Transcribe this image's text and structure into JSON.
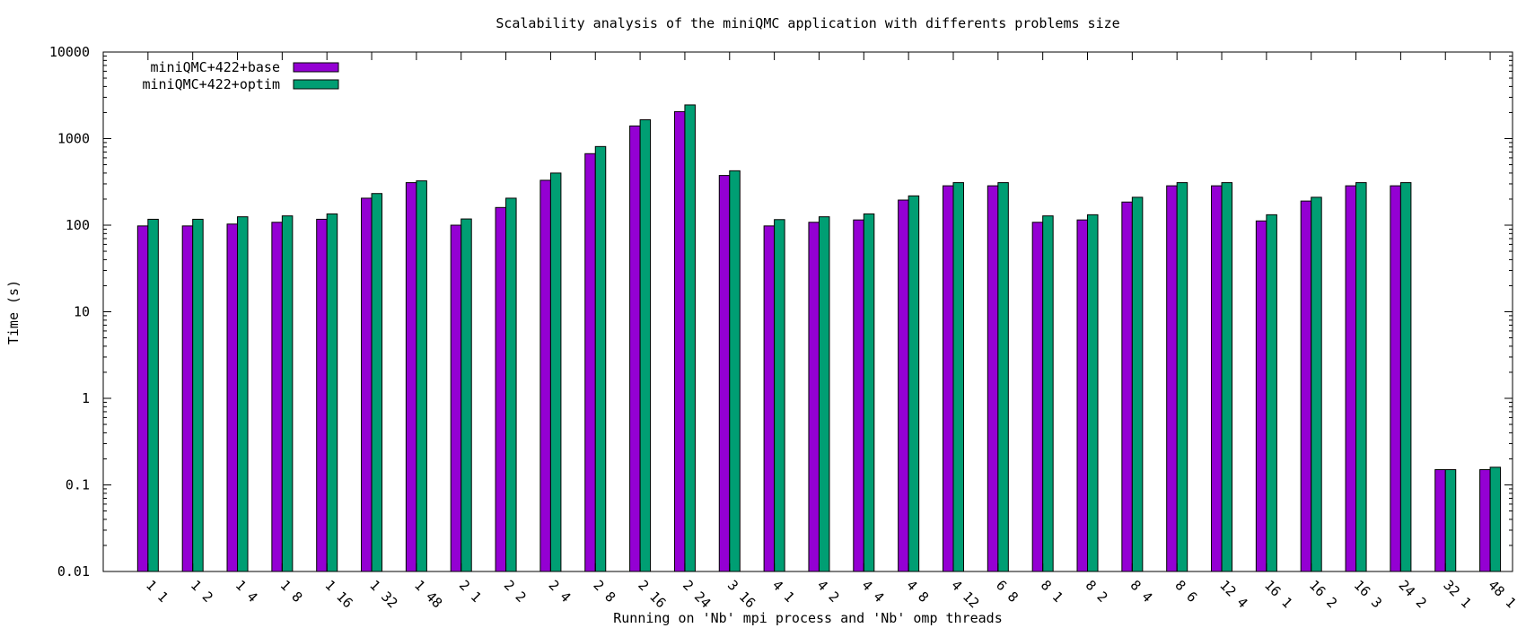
{
  "chart_data": {
    "type": "bar",
    "title": "Scalability analysis of the miniQMC application with differents problems size",
    "xlabel": "Running on 'Nb' mpi process and 'Nb' omp threads",
    "ylabel": "Time (s)",
    "yscale": "log",
    "ylim": [
      0.01,
      10000
    ],
    "yticks": [
      "0.01",
      "0.1",
      "1",
      "10",
      "100",
      "1000",
      "10000"
    ],
    "legend_position": "top-left",
    "categories": [
      "1 1",
      "1 2",
      "1 4",
      "1 8",
      "1 16",
      "1 32",
      "1 48",
      "2 1",
      "2 2",
      "2 4",
      "2 8",
      "2 16",
      "2 24",
      "3 16",
      "4 1",
      "4 2",
      "4 4",
      "4 8",
      "4 12",
      "6 8",
      "8 1",
      "8 2",
      "8 4",
      "8 6",
      "12 4",
      "16 1",
      "16 2",
      "16 3",
      "24 2",
      "32 1",
      "48 1"
    ],
    "series": [
      {
        "name": "miniQMC+422+base",
        "color": "#9400d3",
        "values": [
          98,
          98,
          103,
          108,
          117,
          205,
          310,
          100,
          160,
          330,
          670,
          1400,
          2050,
          375,
          98,
          108,
          115,
          195,
          285,
          285,
          108,
          115,
          185,
          285,
          285,
          112,
          190,
          285,
          285,
          0.15,
          0.15
        ]
      },
      {
        "name": "miniQMC+422+optim",
        "color": "#009e73",
        "values": [
          117,
          117,
          125,
          128,
          135,
          232,
          325,
          118,
          205,
          400,
          810,
          1650,
          2450,
          425,
          116,
          125,
          135,
          218,
          310,
          310,
          128,
          132,
          210,
          310,
          310,
          132,
          210,
          310,
          310,
          0.15,
          0.16
        ]
      }
    ]
  }
}
